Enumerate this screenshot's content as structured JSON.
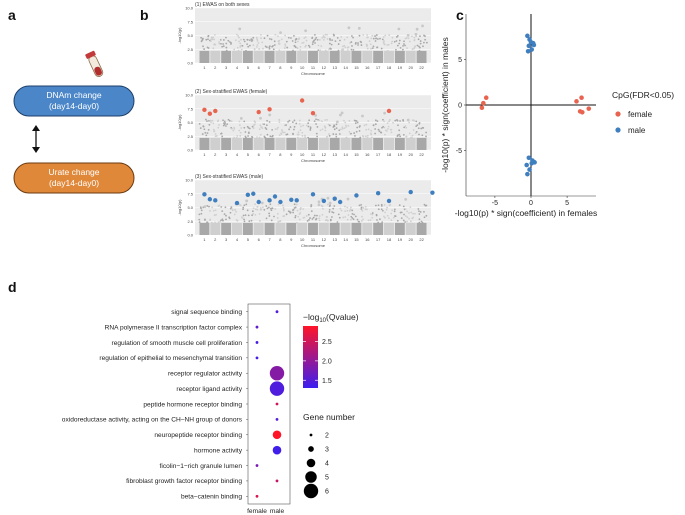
{
  "panel_labels": [
    "a",
    "b",
    "c",
    "d"
  ],
  "panel_a": {
    "box1_line1": "DNAm change",
    "box1_line2": "(day14-day0)",
    "box2_line1": "Urate change",
    "box2_line2": "(day14-day0)",
    "colors": {
      "box1": "#4a86c8",
      "box2": "#e0883a",
      "tube_cap": "#c23a3a"
    }
  },
  "chart_data": [
    {
      "type": "scatter",
      "subtype": "manhattan",
      "title": "(1) EWAS on both sexes",
      "xlabel": "Chromosome",
      "ylabel": "-log10(p)",
      "yticks": [
        "0.0",
        "2.5",
        "5.0",
        "7.5",
        "10.0"
      ],
      "ylim": [
        0,
        10
      ],
      "chromosomes": [
        "1",
        "2",
        "3",
        "4",
        "5",
        "6",
        "7",
        "8",
        "9",
        "10",
        "11",
        "12",
        "13",
        "14",
        "15",
        "16",
        "17",
        "18",
        "19",
        "20",
        "22"
      ],
      "highlighted_points": []
    },
    {
      "type": "scatter",
      "subtype": "manhattan",
      "title": "(2) Sex-stratified EWAS (female)",
      "xlabel": "Chromosome",
      "ylabel": "-log10(p)",
      "yticks": [
        "0.0",
        "2.5",
        "5.0",
        "7.5",
        "10.0"
      ],
      "ylim": [
        0,
        10
      ],
      "chromosomes": [
        "1",
        "2",
        "3",
        "4",
        "5",
        "6",
        "7",
        "8",
        "9",
        "10",
        "11",
        "12",
        "13",
        "14",
        "15",
        "16",
        "17",
        "18",
        "19",
        "20",
        "22"
      ],
      "highlight_color": "#e8644f",
      "highlighted_points": [
        {
          "chr": 1,
          "y": 7.3
        },
        {
          "chr": 1.5,
          "y": 6.6
        },
        {
          "chr": 2,
          "y": 7.1
        },
        {
          "chr": 6,
          "y": 6.9
        },
        {
          "chr": 7,
          "y": 7.4
        },
        {
          "chr": 10,
          "y": 9.0
        },
        {
          "chr": 11,
          "y": 6.7
        },
        {
          "chr": 18,
          "y": 7.1
        }
      ]
    },
    {
      "type": "scatter",
      "subtype": "manhattan",
      "title": "(3) Sex-stratified EWAS (male)",
      "xlabel": "Chromosome",
      "ylabel": "-log10(p)",
      "yticks": [
        "0.0",
        "2.5",
        "5.0",
        "7.5",
        "10.0"
      ],
      "ylim": [
        0,
        10
      ],
      "chromosomes": [
        "1",
        "2",
        "3",
        "4",
        "5",
        "6",
        "7",
        "8",
        "9",
        "10",
        "11",
        "12",
        "13",
        "14",
        "15",
        "16",
        "17",
        "18",
        "19",
        "20",
        "22"
      ],
      "highlight_color": "#3f7fbf",
      "highlighted_points": [
        {
          "chr": 1,
          "y": 7.4
        },
        {
          "chr": 1.5,
          "y": 6.5
        },
        {
          "chr": 2,
          "y": 6.3
        },
        {
          "chr": 4,
          "y": 5.8
        },
        {
          "chr": 5,
          "y": 7.3
        },
        {
          "chr": 5.5,
          "y": 7.5
        },
        {
          "chr": 6,
          "y": 6.0
        },
        {
          "chr": 7,
          "y": 6.3
        },
        {
          "chr": 7.5,
          "y": 7.0
        },
        {
          "chr": 8,
          "y": 6.0
        },
        {
          "chr": 9,
          "y": 6.4
        },
        {
          "chr": 9.5,
          "y": 6.3
        },
        {
          "chr": 11,
          "y": 7.4
        },
        {
          "chr": 12,
          "y": 6.2
        },
        {
          "chr": 13,
          "y": 6.6
        },
        {
          "chr": 13.5,
          "y": 6.0
        },
        {
          "chr": 15,
          "y": 7.2
        },
        {
          "chr": 17,
          "y": 7.6
        },
        {
          "chr": 18,
          "y": 6.2
        },
        {
          "chr": 20,
          "y": 7.8
        },
        {
          "chr": 22,
          "y": 7.7
        }
      ]
    },
    {
      "type": "scatter",
      "xlabel": "-log10(p) * sign(coefficient) in females",
      "ylabel": "-log10(p) * sign(coefficient) in males",
      "xlim": [
        -9,
        9
      ],
      "ylim": [
        -10,
        10
      ],
      "xticks": [
        -5,
        0,
        5
      ],
      "yticks": [
        -5,
        0,
        5
      ],
      "legend_title": "CpG(FDR<0.05)",
      "legend_position": "right",
      "series": [
        {
          "name": "female",
          "color": "#e8644f",
          "points": [
            [
              -6.2,
              0.8
            ],
            [
              -6.6,
              0.2
            ],
            [
              -6.8,
              -0.3
            ],
            [
              6.3,
              0.4
            ],
            [
              6.8,
              -0.7
            ],
            [
              7.1,
              -0.8
            ],
            [
              8.0,
              -0.4
            ],
            [
              7.0,
              0.8
            ]
          ]
        },
        {
          "name": "male",
          "color": "#3f7fbf",
          "points": [
            [
              -0.5,
              7.6
            ],
            [
              -0.2,
              7.2
            ],
            [
              0.0,
              6.9
            ],
            [
              0.3,
              6.8
            ],
            [
              -0.3,
              6.5
            ],
            [
              0.1,
              6.1
            ],
            [
              -0.4,
              5.9
            ],
            [
              0.4,
              6.6
            ],
            [
              -0.3,
              -5.8
            ],
            [
              0.2,
              -6.1
            ],
            [
              0.5,
              -6.3
            ],
            [
              -0.6,
              -6.6
            ],
            [
              -0.2,
              -7.1
            ],
            [
              -0.5,
              -7.6
            ],
            [
              0.1,
              -6.4
            ]
          ]
        }
      ]
    },
    {
      "type": "scatter",
      "subtype": "dot-plot",
      "categories_x": [
        "female",
        "male"
      ],
      "terms": [
        "signal sequence binding",
        "RNA polymerase II transcription factor complex",
        "regulation of smooth muscle cell proliferation",
        "regulation of epithelial to mesenchymal transition",
        "receptor regulator activity",
        "receptor ligand activity",
        "peptide hormone receptor binding",
        "oxidoreductase activity, acting on the CH–NH group of donors",
        "neuropeptide receptor binding",
        "hormone activity",
        "ficolin−1−rich granule lumen",
        "fibroblast growth factor receptor binding",
        "beta−catenin binding"
      ],
      "color_legend_title_prefix": "−log",
      "color_legend_title_sub": "10",
      "color_legend_title_suffix": "(Qvalue)",
      "color_ticks": [
        "2.5",
        "2.0",
        "1.5"
      ],
      "color_range": [
        1.3,
        2.9
      ],
      "size_legend_title": "Gene number",
      "size_ticks": [
        "2",
        "3",
        "4",
        "5",
        "6"
      ],
      "points": [
        {
          "term": 0,
          "group": "male",
          "genes": 2,
          "q": 1.5
        },
        {
          "term": 1,
          "group": "female",
          "genes": 2,
          "q": 1.6
        },
        {
          "term": 2,
          "group": "female",
          "genes": 2,
          "q": 1.4
        },
        {
          "term": 3,
          "group": "female",
          "genes": 2,
          "q": 1.4
        },
        {
          "term": 4,
          "group": "male",
          "genes": 6,
          "q": 1.9
        },
        {
          "term": 5,
          "group": "male",
          "genes": 6,
          "q": 1.45
        },
        {
          "term": 6,
          "group": "male",
          "genes": 2,
          "q": 2.5
        },
        {
          "term": 7,
          "group": "male",
          "genes": 2,
          "q": 1.5
        },
        {
          "term": 8,
          "group": "male",
          "genes": 4,
          "q": 2.9
        },
        {
          "term": 9,
          "group": "male",
          "genes": 4,
          "q": 1.35
        },
        {
          "term": 10,
          "group": "female",
          "genes": 2,
          "q": 1.8
        },
        {
          "term": 11,
          "group": "male",
          "genes": 2,
          "q": 2.4
        },
        {
          "term": 12,
          "group": "female",
          "genes": 2,
          "q": 2.6
        }
      ]
    }
  ]
}
